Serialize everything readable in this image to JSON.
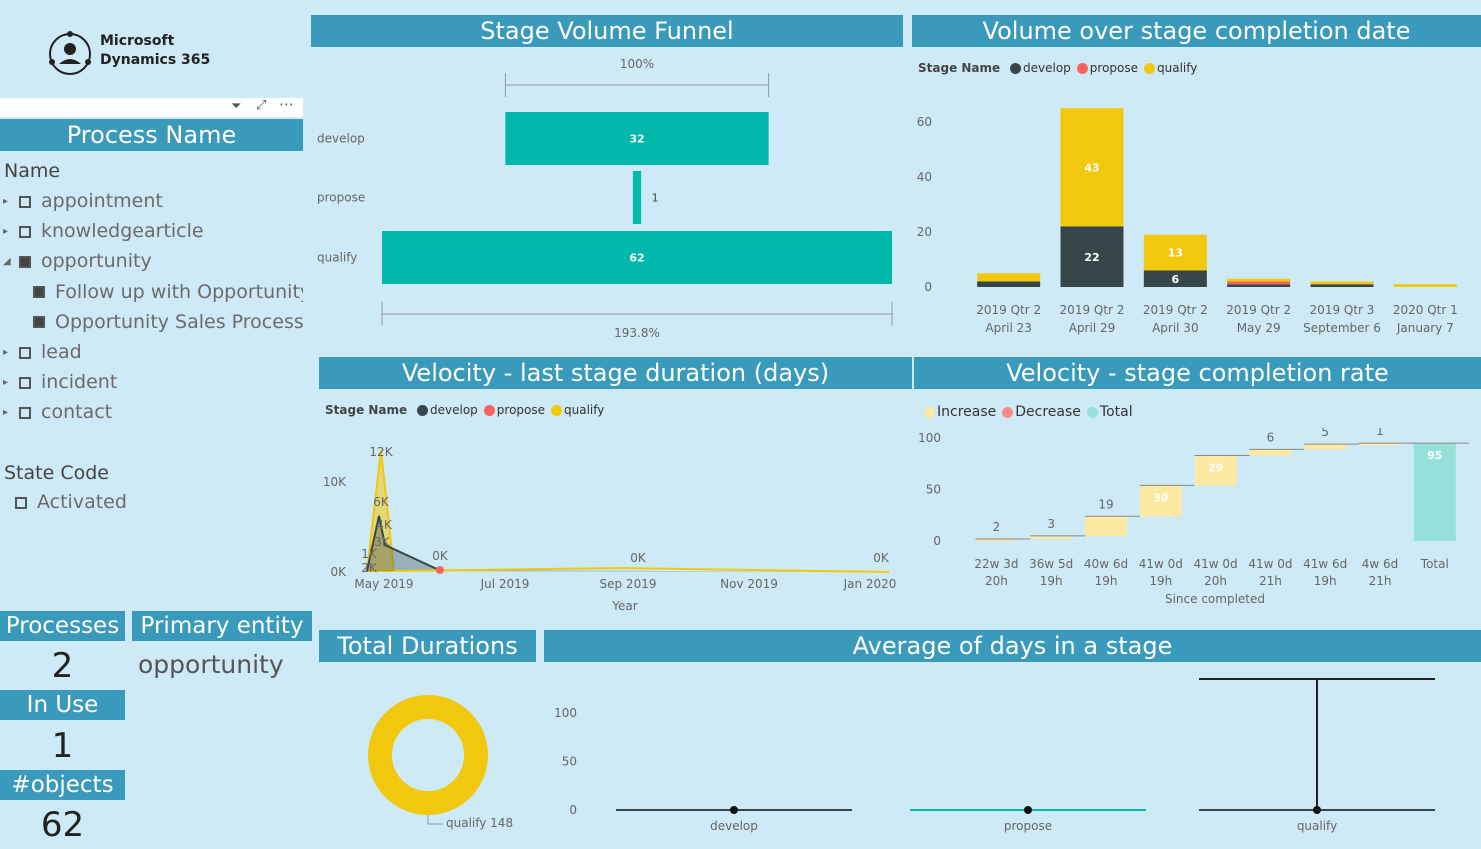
{
  "logo": {
    "line1": "Microsoft",
    "line2": "Dynamics 365"
  },
  "toolbar_icons": [
    "filter-icon",
    "focus-mode-icon",
    "more-options-icon"
  ],
  "process_slicer": {
    "title": "Process Name",
    "field": "Name",
    "items": [
      {
        "label": "appointment",
        "checked": false,
        "expandable": true,
        "expanded": false
      },
      {
        "label": "knowledgearticle",
        "checked": false,
        "expandable": true,
        "expanded": false
      },
      {
        "label": "opportunity",
        "checked": true,
        "expandable": true,
        "expanded": true
      },
      {
        "label": "Follow up with Opportunity",
        "checked": true,
        "child": true
      },
      {
        "label": "Opportunity Sales Process",
        "checked": true,
        "child": true
      },
      {
        "label": "lead",
        "checked": false,
        "expandable": true,
        "expanded": false
      },
      {
        "label": "incident",
        "checked": false,
        "expandable": true,
        "expanded": false
      },
      {
        "label": "contact",
        "checked": false,
        "expandable": true,
        "expanded": false
      }
    ]
  },
  "state_slicer": {
    "title": "State Code",
    "items": [
      {
        "label": "Activated",
        "checked": false
      }
    ]
  },
  "cards": {
    "processes": {
      "label": "Processes",
      "value": "2"
    },
    "primary_entity": {
      "label": "Primary entity",
      "value": "opportunity"
    },
    "in_use": {
      "label": "In Use",
      "value": "1"
    },
    "objects": {
      "label": "#objects",
      "value": "62"
    }
  },
  "funnel": {
    "title": "Stage Volume Funnel",
    "top_pct": "100%",
    "bottom_pct": "193.8%",
    "chart_data": {
      "type": "bar",
      "categories": [
        "develop",
        "propose",
        "qualify"
      ],
      "values": [
        32,
        1,
        62
      ]
    },
    "bar_color": "#01b8aa"
  },
  "volume": {
    "title": "Volume over stage completion date",
    "legend_title": "Stage Name",
    "chart_data": {
      "type": "bar",
      "categories": [
        "2019 Qtr 2|April 23",
        "2019 Qtr 2|April 29",
        "2019 Qtr 2|April 30",
        "2019 Qtr 2|May 29",
        "2019 Qtr 3|September 6",
        "2020 Qtr 1|January 7"
      ],
      "series": [
        {
          "name": "develop",
          "color": "#374649",
          "values": [
            2,
            22,
            6,
            1,
            1,
            0
          ]
        },
        {
          "name": "propose",
          "color": "#fd625e",
          "values": [
            0,
            0,
            0,
            1,
            0,
            0
          ]
        },
        {
          "name": "qualify",
          "color": "#f2c80f",
          "values": [
            3,
            43,
            13,
            1,
            1,
            1
          ]
        }
      ],
      "ylim": [
        0,
        65
      ],
      "yticks": [
        0,
        20,
        40,
        60
      ]
    }
  },
  "velocity_duration": {
    "title": "Velocity - last stage duration (days)",
    "legend_title": "Stage Name",
    "legend": [
      {
        "name": "develop",
        "color": "#374649"
      },
      {
        "name": "propose",
        "color": "#fd625e"
      },
      {
        "name": "qualify",
        "color": "#f2c80f"
      }
    ],
    "chart_data": {
      "type": "area",
      "xlabel": "Year",
      "x_ticks": [
        "May 2019",
        "Jul 2019",
        "Sep 2019",
        "Nov 2019",
        "Jan 2020"
      ],
      "y_ticks": [
        "0K",
        "10K"
      ],
      "point_labels": [
        "12K",
        "6K",
        "4K",
        "3K",
        "1K",
        "2K",
        "0K",
        "0K",
        "0K"
      ]
    }
  },
  "velocity_rate": {
    "title": "Velocity - stage completion rate",
    "legend": [
      {
        "name": "Increase",
        "color": "#fde9a1"
      },
      {
        "name": "Decrease",
        "color": "#fd8a87"
      },
      {
        "name": "Total",
        "color": "#95e1d9"
      }
    ],
    "chart_data": {
      "type": "bar",
      "xlabel": "Since completed",
      "categories": [
        "22w 3d|20h",
        "36w 5d|19h",
        "40w 6d|19h",
        "41w 0d|19h",
        "41w 0d|20h",
        "41w 0d|21h",
        "41w 6d|19h",
        "4w 6d|21h",
        "Total"
      ],
      "values": [
        2,
        3,
        19,
        30,
        29,
        6,
        5,
        1,
        95
      ],
      "yticks": [
        0,
        50,
        100
      ],
      "ylim": [
        0,
        100
      ]
    }
  },
  "total_durations": {
    "title": "Total Durations",
    "chart_data": {
      "type": "pie",
      "labels": [
        "qualify"
      ],
      "values": [
        148
      ],
      "label_text": "qualify 148"
    },
    "color": "#f2c80f"
  },
  "avg_days": {
    "title": "Average of days in a stage",
    "chart_data": {
      "type": "line",
      "categories": [
        "develop",
        "propose",
        "qualify"
      ],
      "values": [
        1,
        1,
        135
      ],
      "yticks": [
        0,
        50,
        100
      ],
      "ylim": [
        0,
        140
      ]
    }
  }
}
